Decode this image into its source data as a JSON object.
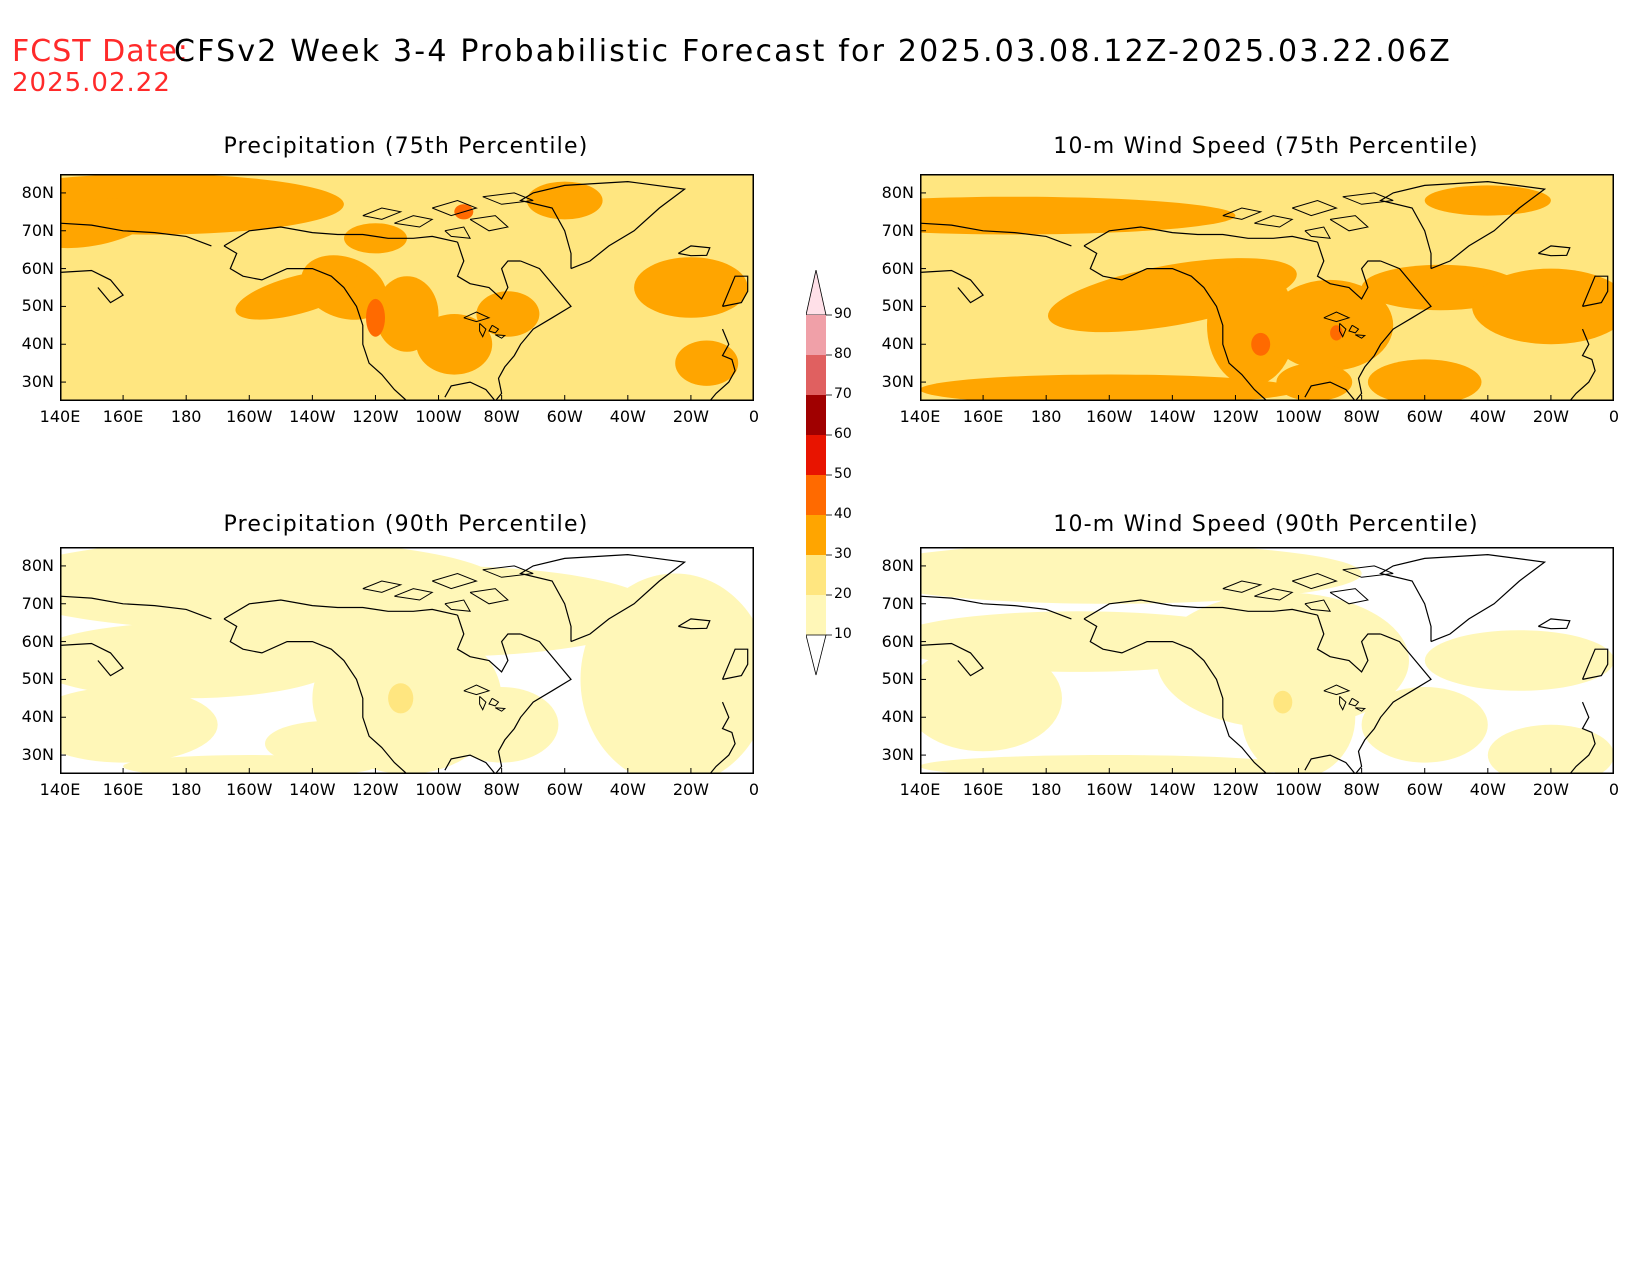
{
  "header": {
    "label": "FCST Date:",
    "title": "CFSv2 Week 3-4 Probabilistic Forecast for 2025.03.08.12Z-2025.03.22.06Z",
    "date": "2025.02.22"
  },
  "latitude_labels": [
    "80N",
    "70N",
    "60N",
    "50N",
    "40N",
    "30N"
  ],
  "longitude_labels": [
    "140E",
    "160E",
    "180",
    "160W",
    "140W",
    "120W",
    "100W",
    "80W",
    "60W",
    "40W",
    "20W",
    "0"
  ],
  "panels": [
    {
      "title": "Precipitation (75th Percentile)",
      "intensity": "high"
    },
    {
      "title": "10-m Wind Speed (75th Percentile)",
      "intensity": "high"
    },
    {
      "title": "Precipitation (90th Percentile)",
      "intensity": "low"
    },
    {
      "title": "10-m Wind Speed (90th Percentile)",
      "intensity": "low"
    }
  ],
  "colorbar": {
    "levels": [
      "10",
      "20",
      "30",
      "40",
      "50",
      "60",
      "70",
      "80",
      "90"
    ],
    "colors": [
      "#fff7b8",
      "#ffe680",
      "#ffa500",
      "#ff6a00",
      "#e81400",
      "#a00000",
      "#e06060",
      "#f0a0a8",
      "#ffe0e8"
    ]
  },
  "colors": {
    "header_red": "#ff2a2a",
    "low_prob": "#fff7b8",
    "mid_prob": "#ffe680",
    "high_prob": "#ffa500",
    "very_high_prob": "#ff6a00"
  }
}
